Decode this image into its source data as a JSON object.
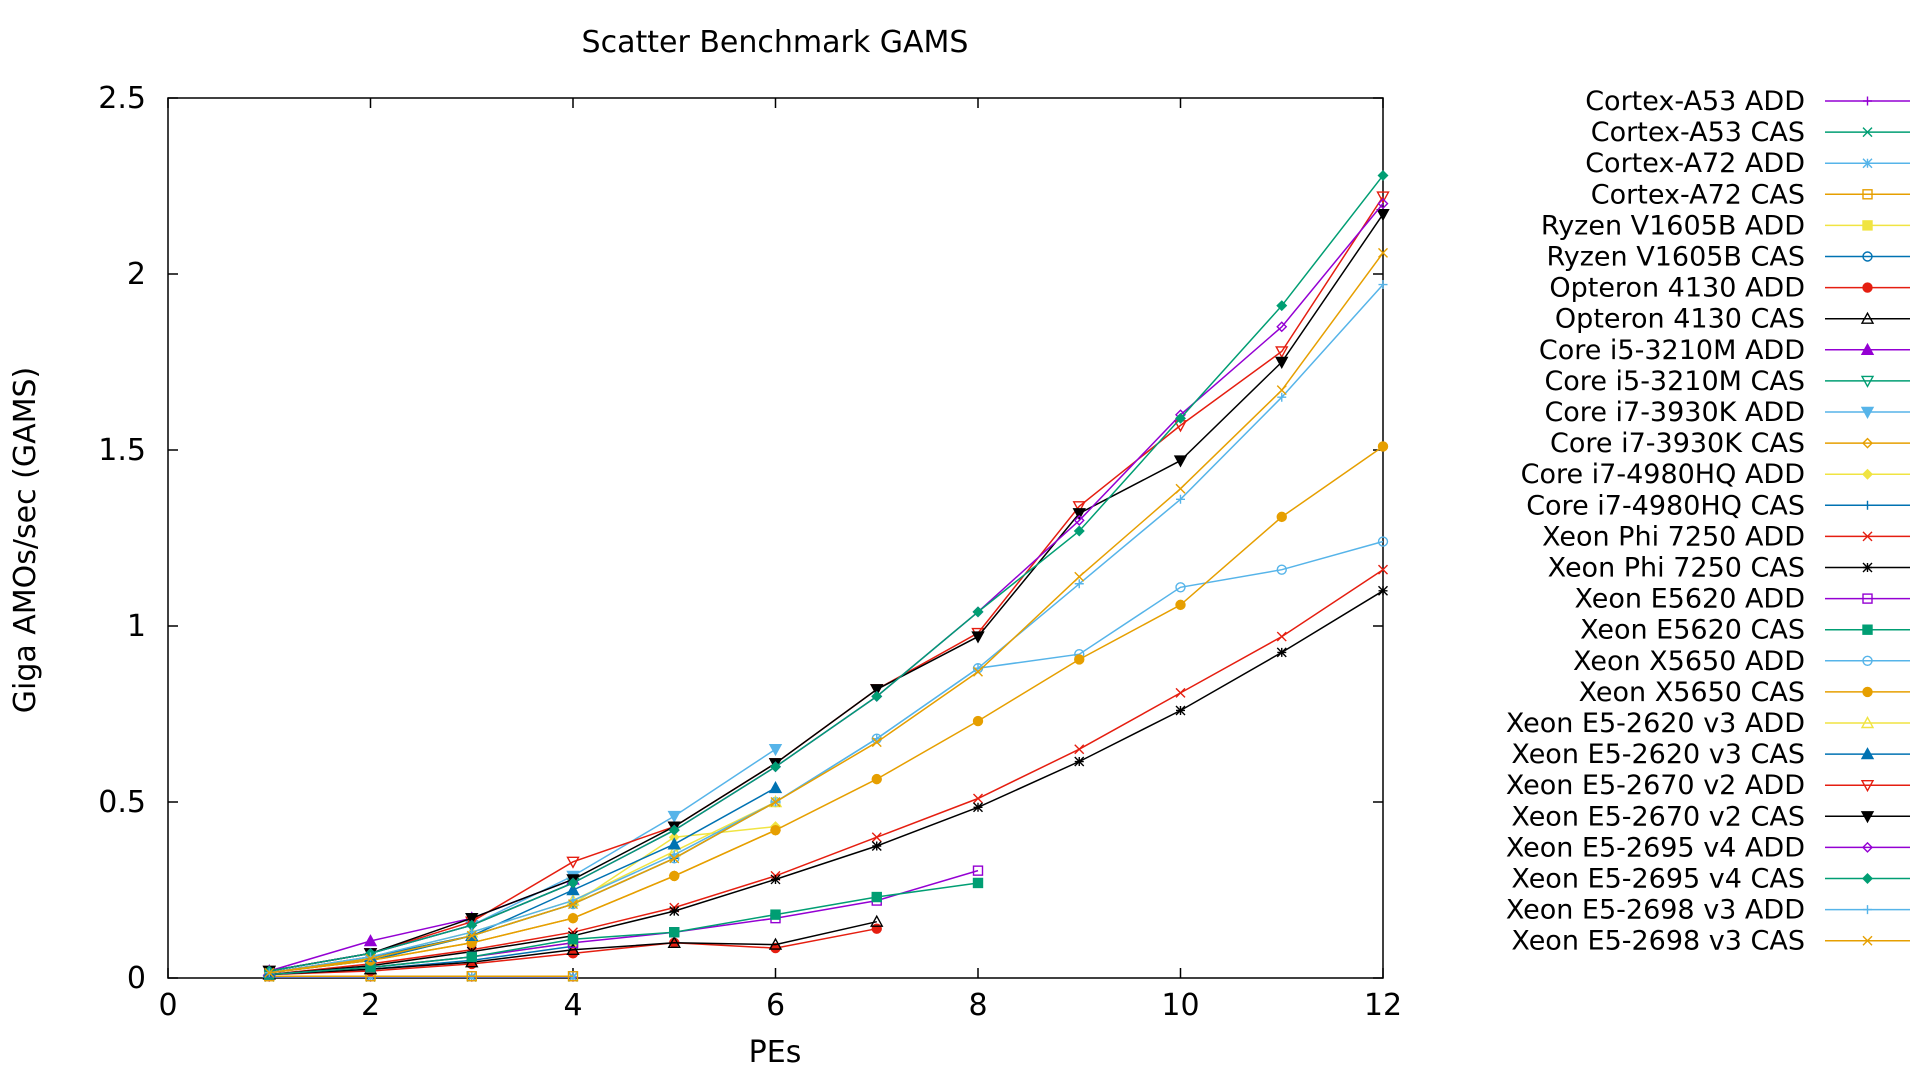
{
  "chart_data": {
    "type": "line",
    "title": "Scatter Benchmark GAMS",
    "xlabel": "PEs",
    "ylabel": "Giga AMOs/sec (GAMS)",
    "xlim": [
      0,
      12
    ],
    "ylim": [
      0,
      2.5
    ],
    "xticks": [
      "0",
      "2",
      "4",
      "6",
      "8",
      "10",
      "12"
    ],
    "yticks": [
      "0",
      "0.5",
      "1",
      "1.5",
      "2",
      "2.5"
    ],
    "grid": false,
    "legend_position": "right",
    "series": [
      {
        "name": "Cortex-A53 ADD",
        "color": "#9400d3",
        "marker": "plus",
        "x": [
          1,
          2,
          3,
          4
        ],
        "y": [
          0.002,
          0.002,
          0.002,
          0.002
        ]
      },
      {
        "name": "Cortex-A53 CAS",
        "color": "#009e73",
        "marker": "cross",
        "x": [
          1,
          2,
          3,
          4
        ],
        "y": [
          0.003,
          0.003,
          0.003,
          0.003
        ]
      },
      {
        "name": "Cortex-A72 ADD",
        "color": "#56b4e9",
        "marker": "star",
        "x": [
          1,
          2,
          3,
          4
        ],
        "y": [
          0.004,
          0.004,
          0.004,
          0.004
        ]
      },
      {
        "name": "Cortex-A72 CAS",
        "color": "#e69f00",
        "marker": "square-open",
        "x": [
          1,
          2,
          3,
          4
        ],
        "y": [
          0.005,
          0.005,
          0.005,
          0.005
        ]
      },
      {
        "name": "Ryzen V1605B ADD",
        "color": "#f0e442",
        "marker": "square",
        "x": [
          1,
          2,
          3,
          4
        ],
        "y": [
          0.01,
          0.03,
          0.06,
          0.1
        ]
      },
      {
        "name": "Ryzen V1605B CAS",
        "color": "#0072b2",
        "marker": "circle-open",
        "x": [
          1,
          2,
          3,
          4
        ],
        "y": [
          0.01,
          0.025,
          0.05,
          0.09
        ]
      },
      {
        "name": "Opteron 4130 ADD",
        "color": "#e51e10",
        "marker": "circle",
        "x": [
          1,
          2,
          3,
          4,
          5,
          6,
          7
        ],
        "y": [
          0.01,
          0.02,
          0.04,
          0.07,
          0.1,
          0.085,
          0.14
        ]
      },
      {
        "name": "Opteron 4130 CAS",
        "color": "#000000",
        "marker": "triangle-open",
        "x": [
          1,
          2,
          3,
          4,
          5,
          6,
          7
        ],
        "y": [
          0.01,
          0.025,
          0.045,
          0.08,
          0.1,
          0.095,
          0.16
        ]
      },
      {
        "name": "Core i5-3210M ADD",
        "color": "#9400d3",
        "marker": "triangle",
        "x": [
          1,
          2,
          3,
          4
        ],
        "y": [
          0.02,
          0.105,
          0.17,
          0.28
        ]
      },
      {
        "name": "Core i5-3210M CAS",
        "color": "#009e73",
        "marker": "triangle-down-open",
        "x": [
          1,
          2,
          3,
          4
        ],
        "y": [
          0.02,
          0.07,
          0.15,
          0.27
        ]
      },
      {
        "name": "Core i7-3930K ADD",
        "color": "#56b4e9",
        "marker": "triangle-down",
        "x": [
          1,
          2,
          3,
          4,
          5,
          6
        ],
        "y": [
          0.02,
          0.07,
          0.15,
          0.29,
          0.46,
          0.65
        ]
      },
      {
        "name": "Core i7-3930K CAS",
        "color": "#e69f00",
        "marker": "diamond-open",
        "x": [
          1,
          2,
          3,
          4,
          5,
          6
        ],
        "y": [
          0.015,
          0.05,
          0.1,
          0.17,
          0.29,
          0.42
        ]
      },
      {
        "name": "Core i7-4980HQ ADD",
        "color": "#f0e442",
        "marker": "diamond",
        "x": [
          1,
          2,
          3,
          4,
          5,
          6
        ],
        "y": [
          0.015,
          0.05,
          0.12,
          0.21,
          0.4,
          0.43
        ]
      },
      {
        "name": "Core i7-4980HQ CAS",
        "color": "#0072b2",
        "marker": "plus",
        "x": [
          1,
          2,
          3,
          4,
          5,
          6
        ],
        "y": [
          0.015,
          0.05,
          0.12,
          0.21,
          0.34,
          0.5
        ]
      },
      {
        "name": "Xeon Phi 7250 ADD",
        "color": "#e51e10",
        "marker": "cross",
        "x": [
          1,
          2,
          3,
          4,
          5,
          6,
          7,
          8,
          9,
          10,
          11,
          12
        ],
        "y": [
          0.01,
          0.04,
          0.08,
          0.13,
          0.2,
          0.29,
          0.4,
          0.51,
          0.65,
          0.81,
          0.97,
          1.16
        ]
      },
      {
        "name": "Xeon Phi 7250 CAS",
        "color": "#000000",
        "marker": "star",
        "x": [
          1,
          2,
          3,
          4,
          5,
          6,
          7,
          8,
          9,
          10,
          11,
          12
        ],
        "y": [
          0.01,
          0.035,
          0.075,
          0.12,
          0.19,
          0.28,
          0.375,
          0.485,
          0.615,
          0.76,
          0.925,
          1.1
        ]
      },
      {
        "name": "Xeon E5620 ADD",
        "color": "#9400d3",
        "marker": "square-open",
        "x": [
          1,
          2,
          3,
          4,
          5,
          6,
          7,
          8
        ],
        "y": [
          0.01,
          0.03,
          0.06,
          0.1,
          0.13,
          0.17,
          0.22,
          0.305
        ]
      },
      {
        "name": "Xeon E5620 CAS",
        "color": "#009e73",
        "marker": "square",
        "x": [
          1,
          2,
          3,
          4,
          5,
          6,
          7,
          8
        ],
        "y": [
          0.01,
          0.03,
          0.06,
          0.11,
          0.13,
          0.18,
          0.23,
          0.27
        ]
      },
      {
        "name": "Xeon X5650 ADD",
        "color": "#56b4e9",
        "marker": "circle-open",
        "x": [
          1,
          2,
          3,
          4,
          5,
          6,
          7,
          8,
          9,
          10,
          11,
          12
        ],
        "y": [
          0.015,
          0.06,
          0.12,
          0.21,
          0.34,
          0.5,
          0.68,
          0.88,
          0.92,
          1.11,
          1.16,
          1.24
        ]
      },
      {
        "name": "Xeon X5650 CAS",
        "color": "#e69f00",
        "marker": "circle",
        "x": [
          1,
          2,
          3,
          4,
          5,
          6,
          7,
          8,
          9,
          10,
          11,
          12
        ],
        "y": [
          0.015,
          0.05,
          0.1,
          0.17,
          0.29,
          0.42,
          0.565,
          0.73,
          0.905,
          1.06,
          1.31,
          1.51
        ]
      },
      {
        "name": "Xeon E5-2620 v3 ADD",
        "color": "#f0e442",
        "marker": "triangle-open",
        "x": [
          1,
          2,
          3,
          4,
          5,
          6
        ],
        "y": [
          0.015,
          0.06,
          0.13,
          0.22,
          0.36,
          0.5
        ]
      },
      {
        "name": "Xeon E5-2620 v3 CAS",
        "color": "#0072b2",
        "marker": "triangle",
        "x": [
          1,
          2,
          3,
          4,
          5,
          6
        ],
        "y": [
          0.015,
          0.06,
          0.12,
          0.25,
          0.38,
          0.54
        ]
      },
      {
        "name": "Xeon E5-2670 v2 ADD",
        "color": "#e51e10",
        "marker": "triangle-down-open",
        "x": [
          1,
          2,
          3,
          4,
          5,
          6,
          7,
          8,
          9,
          10,
          11,
          12
        ],
        "y": [
          0.02,
          0.07,
          0.16,
          0.33,
          0.43,
          0.61,
          0.82,
          0.98,
          1.34,
          1.57,
          1.78,
          2.22
        ]
      },
      {
        "name": "Xeon E5-2670 v2 CAS",
        "color": "#000000",
        "marker": "triangle-down",
        "x": [
          1,
          2,
          3,
          4,
          5,
          6,
          7,
          8,
          9,
          10,
          11,
          12
        ],
        "y": [
          0.02,
          0.07,
          0.17,
          0.28,
          0.43,
          0.61,
          0.82,
          0.97,
          1.32,
          1.47,
          1.75,
          2.17
        ]
      },
      {
        "name": "Xeon E5-2695 v4 ADD",
        "color": "#9400d3",
        "marker": "diamond-open",
        "x": [
          1,
          2,
          3,
          4,
          5,
          6,
          7,
          8,
          9,
          10,
          11,
          12
        ],
        "y": [
          0.02,
          0.07,
          0.15,
          0.27,
          0.42,
          0.6,
          0.8,
          1.04,
          1.3,
          1.6,
          1.85,
          2.2
        ]
      },
      {
        "name": "Xeon E5-2695 v4 CAS",
        "color": "#009e73",
        "marker": "diamond",
        "x": [
          1,
          2,
          3,
          4,
          5,
          6,
          7,
          8,
          9,
          10,
          11,
          12
        ],
        "y": [
          0.02,
          0.07,
          0.15,
          0.27,
          0.42,
          0.6,
          0.8,
          1.04,
          1.27,
          1.59,
          1.91,
          2.28
        ]
      },
      {
        "name": "Xeon E5-2698 v3 ADD",
        "color": "#56b4e9",
        "marker": "plus",
        "x": [
          1,
          2,
          3,
          4,
          5,
          6,
          7,
          8,
          9,
          10,
          11,
          12
        ],
        "y": [
          0.015,
          0.06,
          0.13,
          0.22,
          0.35,
          0.5,
          0.68,
          0.88,
          1.12,
          1.36,
          1.65,
          1.97
        ]
      },
      {
        "name": "Xeon E5-2698 v3 CAS",
        "color": "#e69f00",
        "marker": "cross",
        "x": [
          1,
          2,
          3,
          4,
          5,
          6,
          7,
          8,
          9,
          10,
          11,
          12
        ],
        "y": [
          0.015,
          0.055,
          0.12,
          0.21,
          0.34,
          0.5,
          0.67,
          0.87,
          1.14,
          1.39,
          1.67,
          2.06
        ]
      }
    ]
  }
}
